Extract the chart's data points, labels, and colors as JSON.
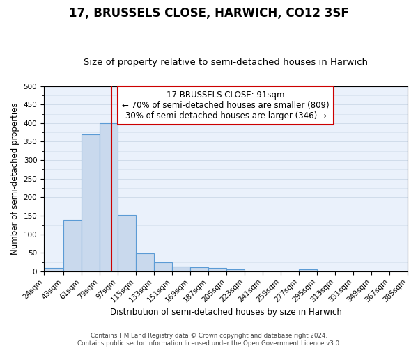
{
  "title": "17, BRUSSELS CLOSE, HARWICH, CO12 3SF",
  "subtitle": "Size of property relative to semi-detached houses in Harwich",
  "xlabel": "Distribution of semi-detached houses by size in Harwich",
  "ylabel": "Number of semi-detached properties",
  "bin_edges": [
    24,
    43,
    61,
    79,
    97,
    115,
    133,
    151,
    169,
    187,
    205,
    223,
    241,
    259,
    277,
    295,
    313,
    331,
    349,
    367,
    385
  ],
  "bin_counts": [
    10,
    138,
    369,
    399,
    152,
    48,
    25,
    13,
    11,
    10,
    5,
    0,
    0,
    0,
    5,
    0,
    0,
    0,
    0,
    0
  ],
  "bar_facecolor": "#c9d9ed",
  "bar_edgecolor": "#5b9bd5",
  "property_value": 91,
  "vline_color": "#cc0000",
  "annotation_title": "17 BRUSSELS CLOSE: 91sqm",
  "annotation_line1": "← 70% of semi-detached houses are smaller (809)",
  "annotation_line2": "30% of semi-detached houses are larger (346) →",
  "annotation_box_edgecolor": "#cc0000",
  "annotation_box_facecolor": "#ffffff",
  "ylim": [
    0,
    500
  ],
  "yticks": [
    0,
    50,
    100,
    150,
    200,
    250,
    300,
    350,
    400,
    450,
    500
  ],
  "tick_labels": [
    "24sqm",
    "43sqm",
    "61sqm",
    "79sqm",
    "97sqm",
    "115sqm",
    "133sqm",
    "151sqm",
    "169sqm",
    "187sqm",
    "205sqm",
    "223sqm",
    "241sqm",
    "259sqm",
    "277sqm",
    "295sqm",
    "313sqm",
    "331sqm",
    "349sqm",
    "367sqm",
    "385sqm"
  ],
  "footer_line1": "Contains HM Land Registry data © Crown copyright and database right 2024.",
  "footer_line2": "Contains public sector information licensed under the Open Government Licence v3.0.",
  "background_color": "#eaf1fb",
  "fig_background": "#ffffff",
  "grid_color": "#d0dcea",
  "title_fontsize": 12,
  "subtitle_fontsize": 9.5,
  "axis_label_fontsize": 8.5,
  "tick_fontsize": 7.5,
  "annotation_title_fontsize": 8.5,
  "annotation_text_fontsize": 8.5
}
